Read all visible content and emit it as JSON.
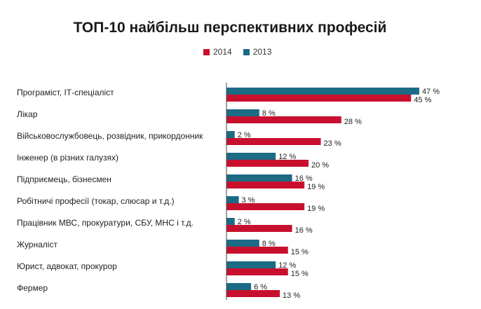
{
  "chart_data": {
    "type": "bar",
    "orientation": "horizontal",
    "title": "ТОП-10 найбільш перспективних професій",
    "categories": [
      "Програміст, ІТ-спеціаліст",
      "Лікар",
      "Військовослужбовець, розвідник, прикордонник",
      "Інженер (в різних галузях)",
      "Підприємець, бізнесмен",
      "Робітничі професії (токар, слюсар и т.д.)",
      "Працівник МВС, прокуратури, СБУ, МНС і т.д.",
      "Журналіст",
      "Юрист, адвокат, прокурор",
      "Фермер"
    ],
    "series": [
      {
        "name": "2014",
        "color": "#c8102e",
        "values": [
          45,
          28,
          23,
          20,
          19,
          19,
          16,
          15,
          15,
          13
        ],
        "labels": [
          "45 %",
          "28 %",
          "23 %",
          "20 %",
          "19 %",
          "19 %",
          "16 %",
          "15 %",
          "15 %",
          "13 %"
        ]
      },
      {
        "name": "2013",
        "color": "#1c6b84",
        "values": [
          47,
          8,
          2,
          12,
          16,
          3,
          2,
          8,
          12,
          6
        ],
        "labels": [
          "47 %",
          "8 %",
          "2 %",
          "12 %",
          "16 %",
          "3 %",
          "2 %",
          "8 %",
          "12 %",
          "6 %"
        ]
      }
    ],
    "xlim": [
      0,
      50
    ],
    "grid": false,
    "legend_position": "top"
  }
}
